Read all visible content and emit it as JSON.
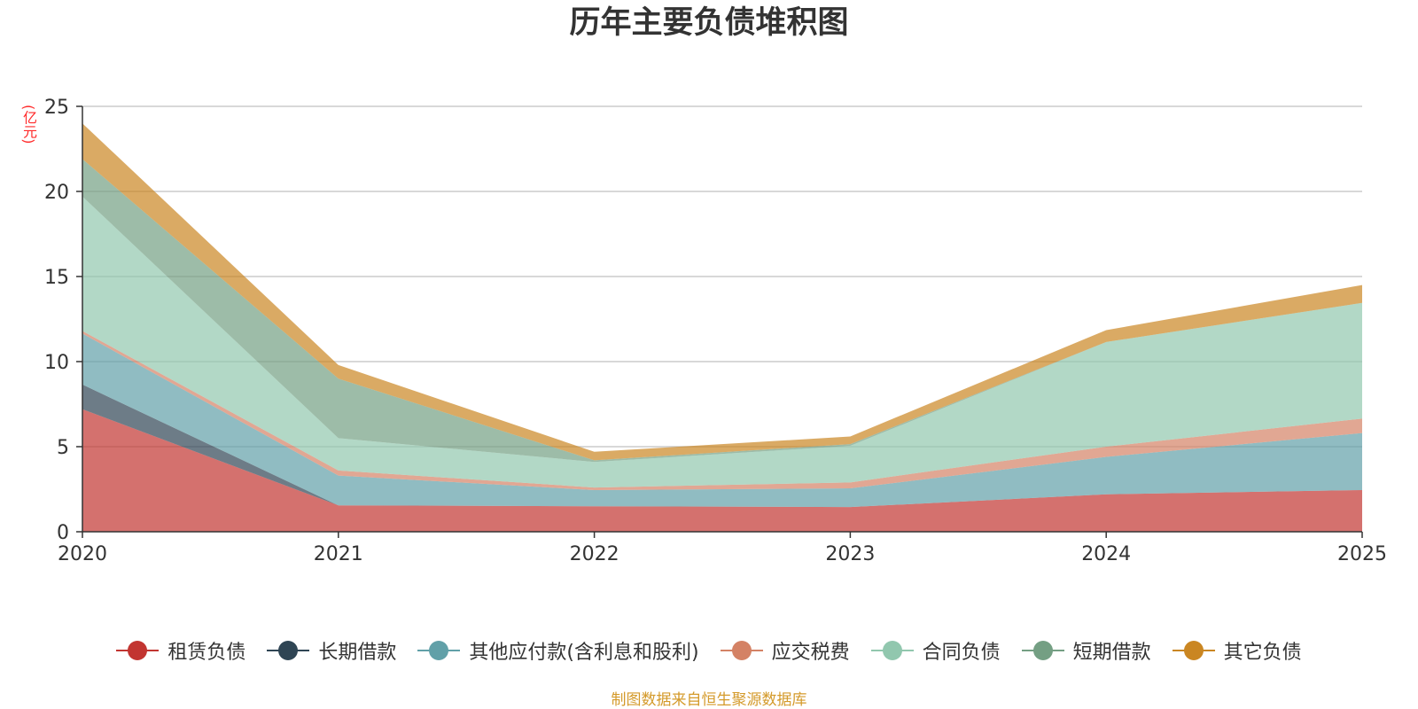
{
  "chart_data": {
    "type": "area",
    "stacked": true,
    "title": "历年主要负债堆积图",
    "unit_label": "(亿元)",
    "x": [
      "2020",
      "2021",
      "2022",
      "2023",
      "2024",
      "2025"
    ],
    "ylim": [
      0,
      25
    ],
    "yticks": [
      "0",
      "5",
      "10",
      "15",
      "20",
      "25"
    ],
    "grid": true,
    "legend_position": "bottom",
    "series": [
      {
        "name": "租赁负债",
        "color": "#c23531",
        "values": [
          7.2,
          1.55,
          1.5,
          1.45,
          2.2,
          2.45
        ]
      },
      {
        "name": "长期借款",
        "color": "#2f4554",
        "values": [
          1.45,
          0.0,
          0.0,
          0.0,
          0.0,
          0.0
        ]
      },
      {
        "name": "其他应付款(含利息和股利)",
        "color": "#61a0a8",
        "values": [
          3.0,
          1.75,
          0.95,
          1.1,
          2.2,
          3.35
        ]
      },
      {
        "name": "应交税费",
        "color": "#d48265",
        "values": [
          0.15,
          0.3,
          0.15,
          0.35,
          0.6,
          0.85
        ]
      },
      {
        "name": "合同负债",
        "color": "#91c7ae",
        "values": [
          7.9,
          1.9,
          1.5,
          2.15,
          6.15,
          6.8
        ]
      },
      {
        "name": "短期借款",
        "color": "#749f83",
        "values": [
          2.2,
          3.5,
          0.1,
          0.1,
          0.0,
          0.0
        ]
      },
      {
        "name": "其它负债",
        "color": "#ca8622",
        "values": [
          2.1,
          0.8,
          0.5,
          0.45,
          0.7,
          1.05
        ]
      }
    ],
    "footnote": "制图数据来自恒生聚源数据库"
  }
}
